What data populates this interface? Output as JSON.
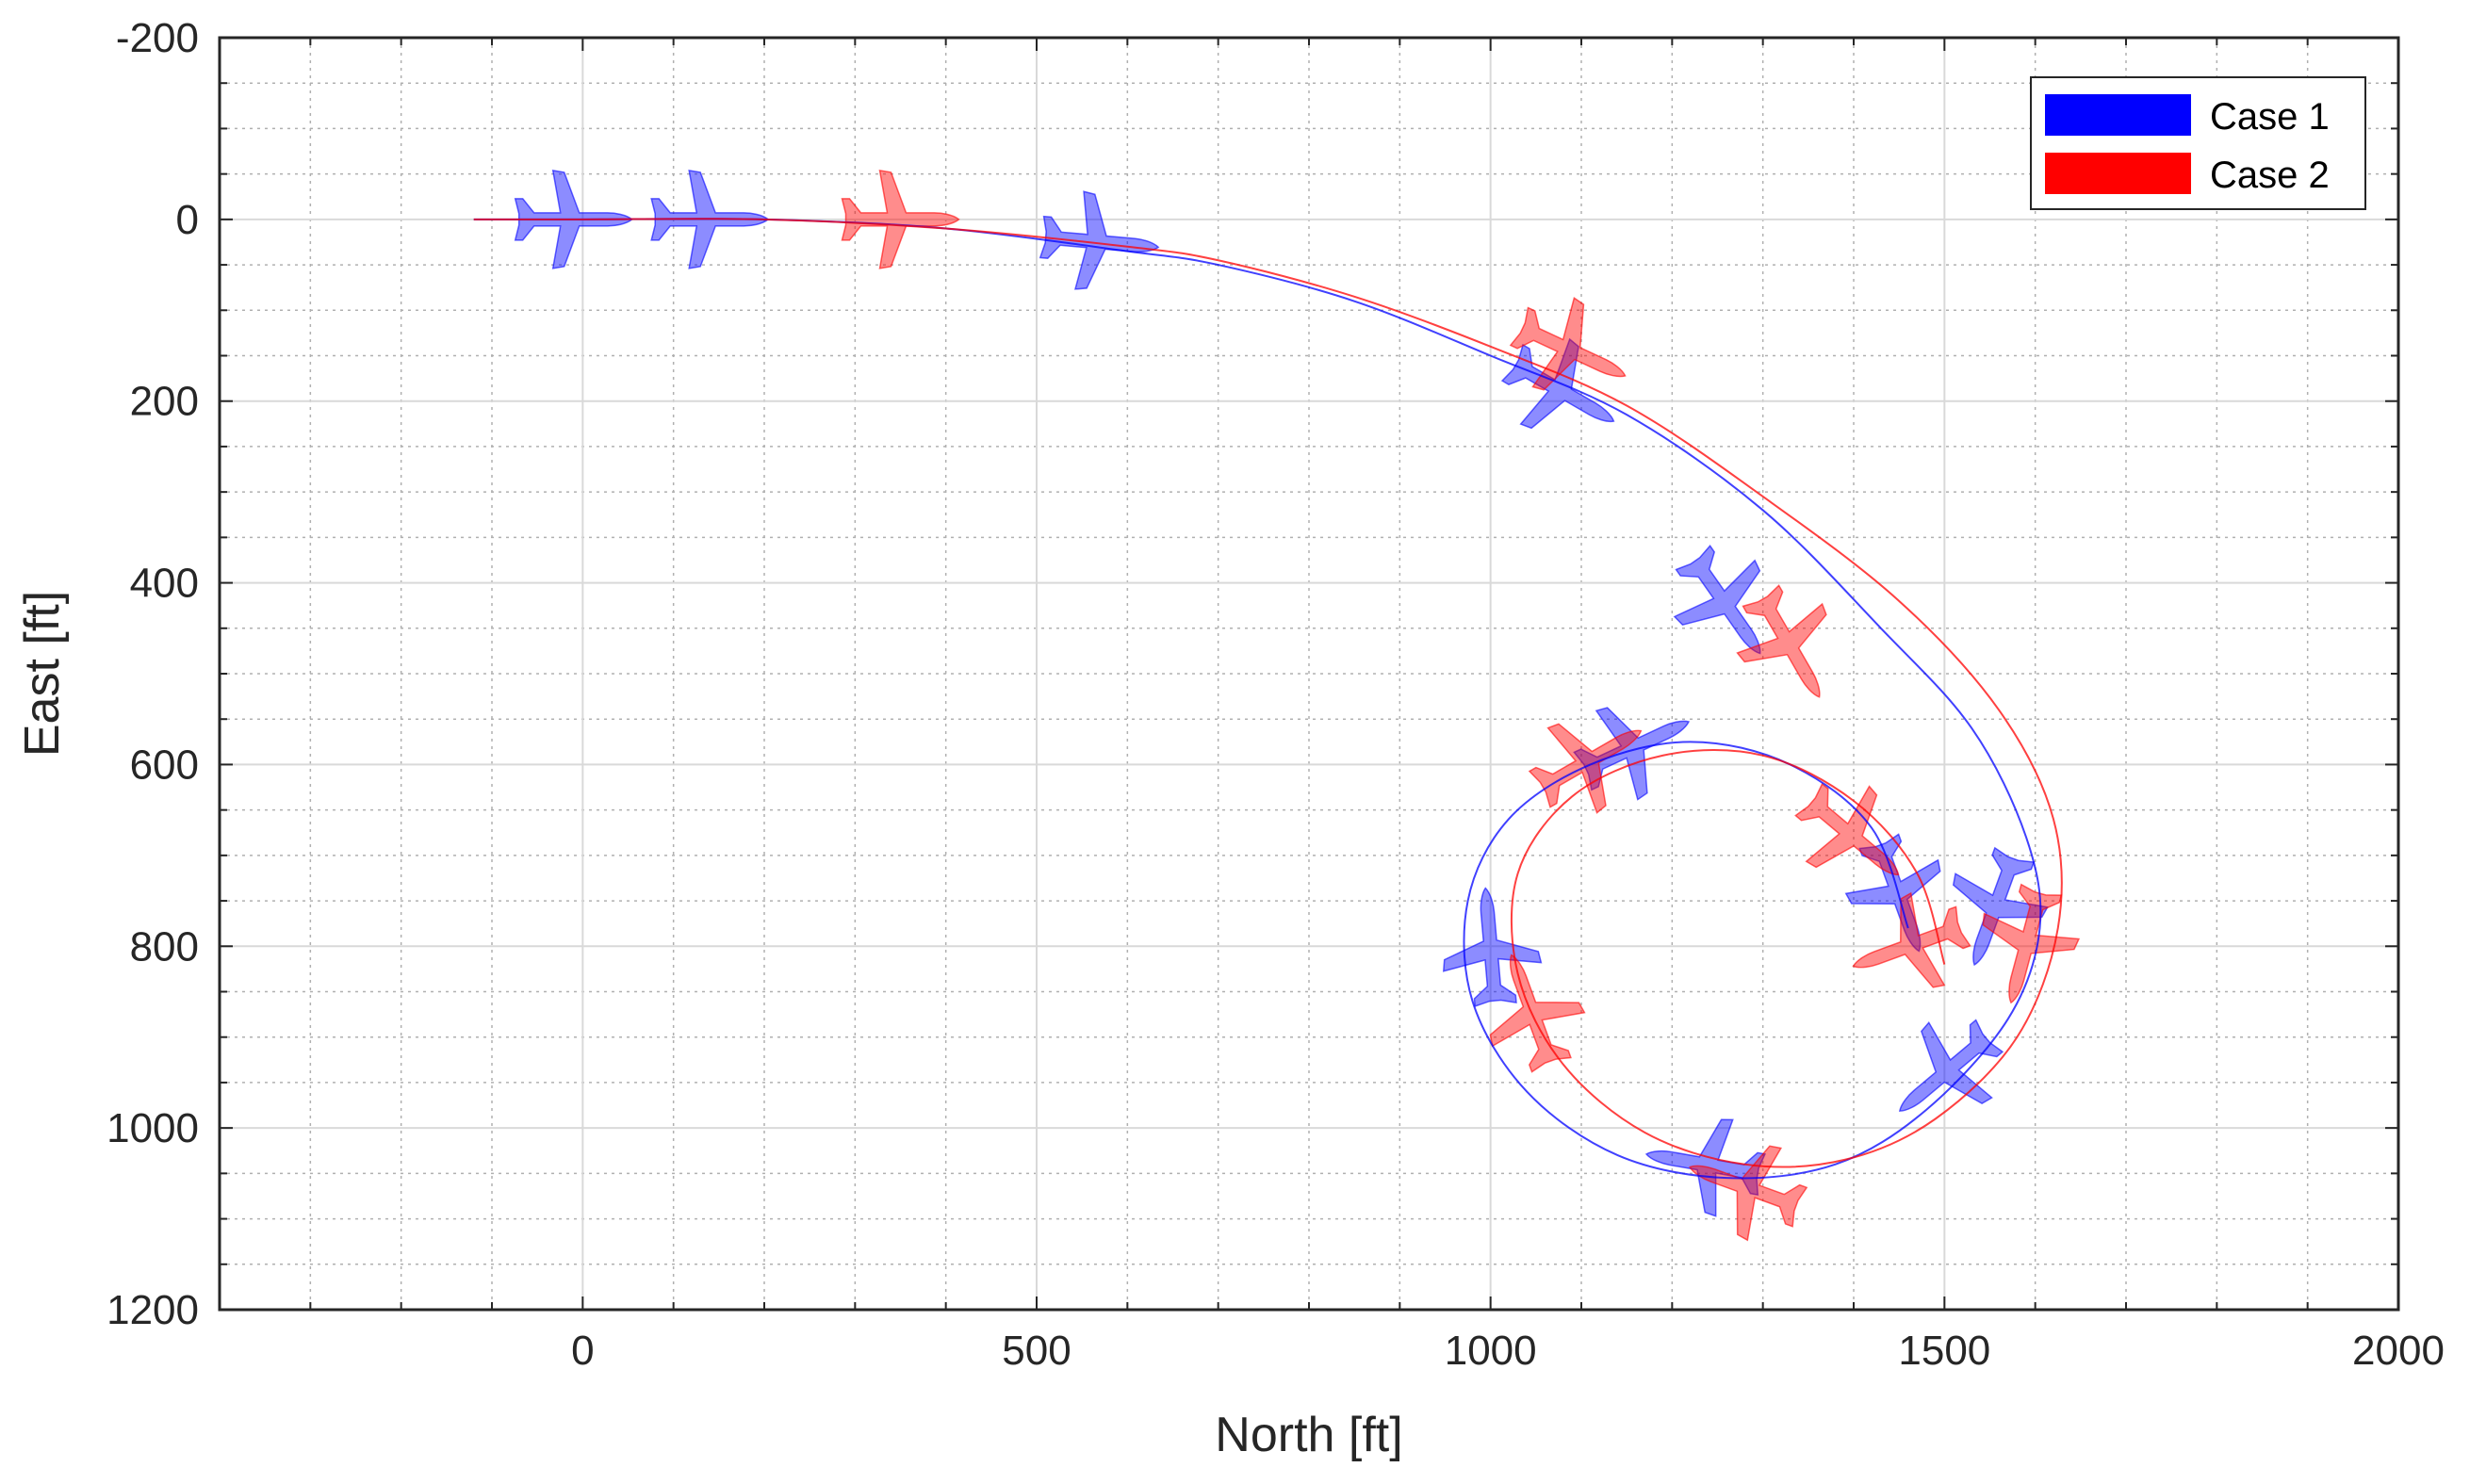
{
  "chart_data": {
    "type": "line",
    "title": "",
    "xlabel": "North [ft]",
    "ylabel": "East [ft]",
    "xlim": [
      -400,
      2000
    ],
    "ylim": [
      -200,
      1200
    ],
    "y_reversed": true,
    "x_ticks": [
      0,
      500,
      1000,
      1500,
      2000
    ],
    "y_ticks": [
      -200,
      0,
      200,
      400,
      600,
      800,
      1000,
      1200
    ],
    "grid": true,
    "minor_grid": true,
    "legend_position": "top-right",
    "series": [
      {
        "name": "Case 1",
        "color": "#0000ff",
        "track": [
          [
            -120,
            0
          ],
          [
            0,
            0
          ],
          [
            200,
            0
          ],
          [
            400,
            10
          ],
          [
            600,
            35
          ],
          [
            700,
            50
          ],
          [
            850,
            90
          ],
          [
            1000,
            150
          ],
          [
            1150,
            215
          ],
          [
            1300,
            320
          ],
          [
            1430,
            450
          ],
          [
            1530,
            560
          ],
          [
            1590,
            680
          ],
          [
            1605,
            780
          ],
          [
            1570,
            880
          ],
          [
            1480,
            980
          ],
          [
            1380,
            1040
          ],
          [
            1260,
            1055
          ],
          [
            1140,
            1030
          ],
          [
            1040,
            960
          ],
          [
            980,
            860
          ],
          [
            975,
            750
          ],
          [
            1020,
            660
          ],
          [
            1110,
            600
          ],
          [
            1220,
            575
          ],
          [
            1330,
            600
          ],
          [
            1420,
            670
          ],
          [
            1460,
            780
          ]
        ],
        "aircraft": [
          [
            -10,
            0,
            0
          ],
          [
            140,
            0,
            0
          ],
          [
            570,
            25,
            5
          ],
          [
            1080,
            190,
            30
          ],
          [
            1260,
            425,
            55
          ],
          [
            1555,
            760,
            110
          ],
          [
            1500,
            940,
            140
          ],
          [
            1235,
            1040,
            190
          ],
          [
            1000,
            800,
            265
          ],
          [
            1160,
            580,
            335
          ],
          [
            1450,
            745,
            70
          ]
        ]
      },
      {
        "name": "Case 2",
        "color": "#ff0000",
        "track": [
          [
            -120,
            0
          ],
          [
            0,
            0
          ],
          [
            200,
            0
          ],
          [
            400,
            10
          ],
          [
            600,
            30
          ],
          [
            700,
            45
          ],
          [
            850,
            85
          ],
          [
            1000,
            140
          ],
          [
            1150,
            205
          ],
          [
            1300,
            305
          ],
          [
            1450,
            420
          ],
          [
            1560,
            540
          ],
          [
            1620,
            660
          ],
          [
            1625,
            780
          ],
          [
            1580,
            900
          ],
          [
            1490,
            990
          ],
          [
            1390,
            1035
          ],
          [
            1280,
            1040
          ],
          [
            1170,
            1005
          ],
          [
            1080,
            930
          ],
          [
            1030,
            830
          ],
          [
            1030,
            720
          ],
          [
            1090,
            635
          ],
          [
            1190,
            590
          ],
          [
            1300,
            590
          ],
          [
            1400,
            640
          ],
          [
            1470,
            720
          ],
          [
            1500,
            820
          ]
        ],
        "aircraft": [
          [
            350,
            0,
            0
          ],
          [
            1090,
            145,
            25
          ],
          [
            1330,
            470,
            60
          ],
          [
            1590,
            800,
            105
          ],
          [
            1460,
            800,
            160
          ],
          [
            1280,
            1065,
            200
          ],
          [
            1110,
            595,
            330
          ],
          [
            1400,
            680,
            40
          ],
          [
            1045,
            870,
            250
          ]
        ]
      }
    ],
    "legend": [
      {
        "label": "Case 1",
        "color": "#0000ff"
      },
      {
        "label": "Case 2",
        "color": "#ff0000"
      }
    ]
  }
}
